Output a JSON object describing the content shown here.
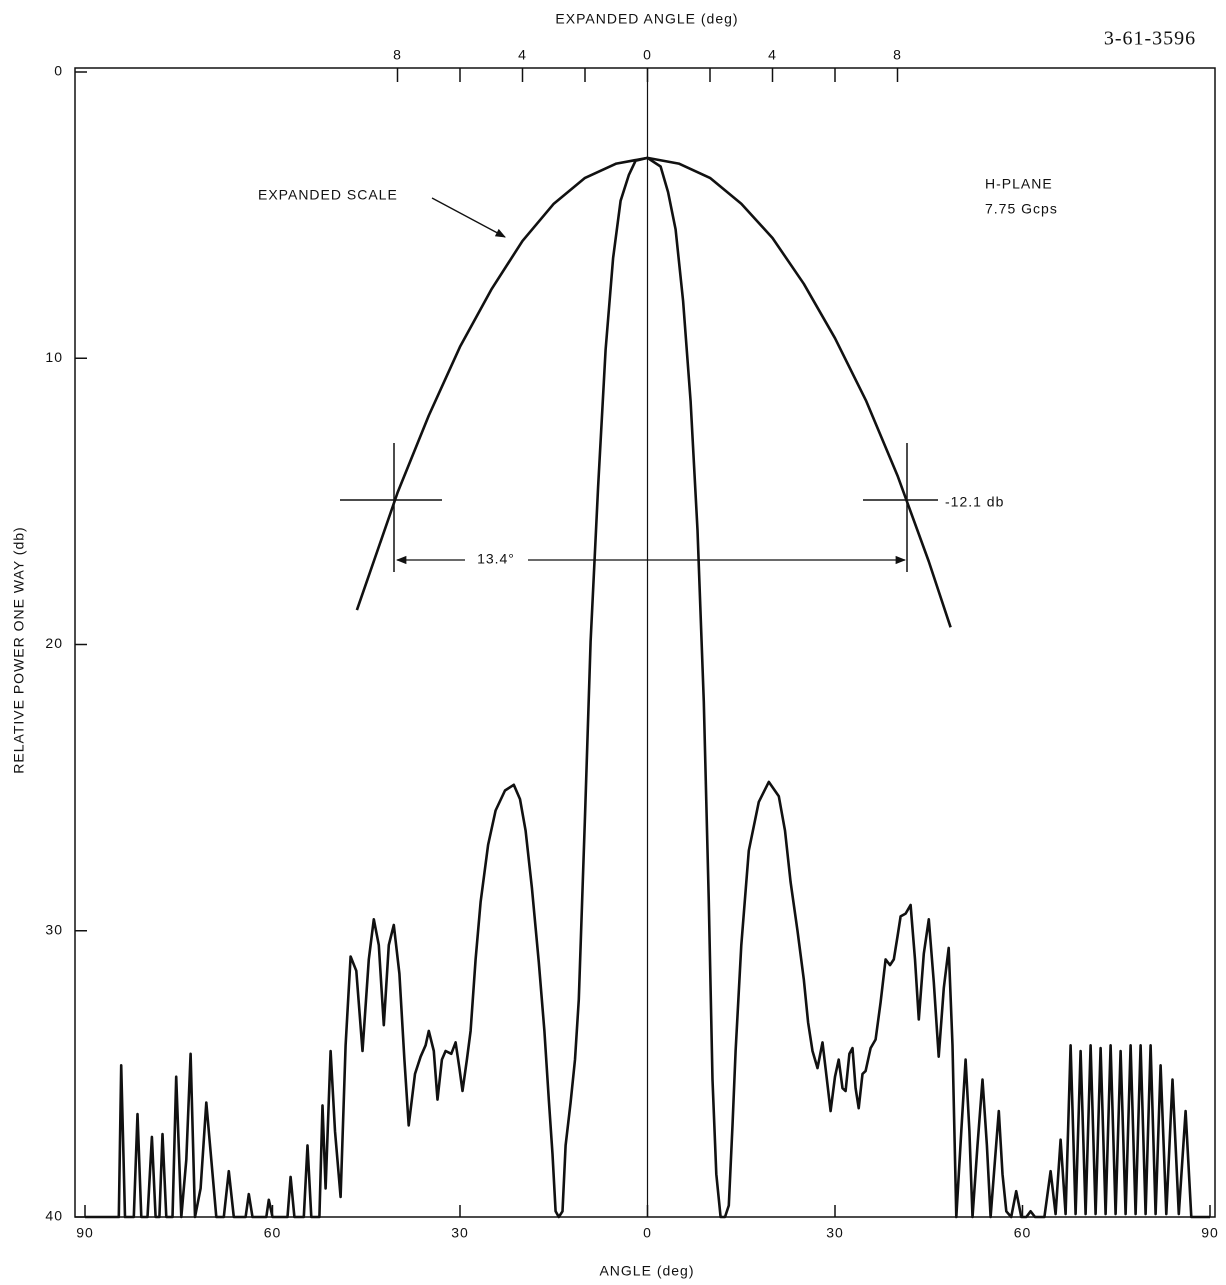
{
  "chart_data": {
    "type": "line",
    "figure_id": "3-61-3596",
    "xlabel": "ANGLE (deg)",
    "x2label": "EXPANDED ANGLE (deg)",
    "ylabel": "RELATIVE POWER ONE WAY (db)",
    "xlim": [
      -90,
      90
    ],
    "xticks": [
      {
        "value": -90,
        "label": "90"
      },
      {
        "value": -60,
        "label": "60"
      },
      {
        "value": -30,
        "label": "30"
      },
      0,
      30,
      60,
      90
    ],
    "x2lim": [
      -18,
      18
    ],
    "x2ticks": [
      {
        "value": -8,
        "label": "8"
      },
      {
        "value": -4,
        "label": "4"
      },
      0,
      4,
      8
    ],
    "x2minor_ticks": [
      -6,
      -2,
      2,
      6
    ],
    "ylim": [
      40,
      0
    ],
    "yticks": [
      0,
      10,
      20,
      30,
      40
    ],
    "series": [
      {
        "color": "#111111",
        "x": [
          -90,
          -84.6,
          -84.2,
          -83.6,
          -82.2,
          -81.6,
          -81,
          -80,
          -79.3,
          -78.7,
          -78.1,
          -77.6,
          -77,
          -76,
          -75.4,
          -74.6,
          -73.8,
          -73.1,
          -72.4,
          -71.5,
          -70.6,
          -69.8,
          -69,
          -67.8,
          -67,
          -66.2,
          -64.3,
          -63.8,
          -63.2,
          -61,
          -60.6,
          -60,
          -57.6,
          -57.1,
          -56.5,
          -55,
          -54.4,
          -53.8,
          -52.5,
          -52,
          -51.5,
          -50.7,
          -50,
          -49.1,
          -48.3,
          -47.5,
          -46.6,
          -45.6,
          -44.6,
          -43.8,
          -43,
          -42.2,
          -41.4,
          -40.6,
          -39.7,
          -38.9,
          -38.2,
          -37.2,
          -36.3,
          -35.5,
          -35,
          -34.2,
          -33.6,
          -32.9,
          -32.3,
          -31.4,
          -30.7,
          -30.1,
          -29.6,
          -28.9,
          -28.3,
          -27.5,
          -26.7,
          -25.5,
          -24.3,
          -22.8,
          -21.4,
          -20.4,
          -19.5,
          -18.5,
          -17.4,
          -16.5,
          -15.8,
          -15.2,
          -14.7,
          -14.2,
          -13.6,
          -13.1,
          -12.3,
          -11.6,
          -11,
          -10,
          -9.1,
          -7.9,
          -6.7,
          -5.5,
          -4.3,
          -3,
          -1.9,
          0,
          2.1,
          3.3,
          4.5,
          5.7,
          6.9,
          8,
          9,
          9.8,
          10.4,
          11,
          11.7,
          12.4,
          13,
          13.6,
          14.1,
          15,
          16.2,
          17.8,
          19.4,
          21,
          22,
          22.9,
          24,
          25,
          25.7,
          26.4,
          27.2,
          28,
          28.7,
          29.3,
          30,
          30.6,
          31.2,
          31.7,
          32.3,
          32.8,
          33.3,
          33.8,
          34.4,
          34.9,
          35.7,
          36.5,
          37.3,
          38.1,
          38.8,
          39.4,
          40,
          40.5,
          41.3,
          42.1,
          42.8,
          43.4,
          44.2,
          45,
          45.8,
          46.6,
          47.4,
          48.2,
          48.8,
          49.4,
          50.2,
          50.9,
          51.5,
          52,
          52.8,
          53.6,
          54.3,
          54.9,
          55.6,
          56.2,
          56.8,
          57.4,
          58.2,
          59,
          59.8,
          60.6,
          61.3,
          62,
          63.5,
          64.5,
          65.3,
          66.1,
          66.9,
          67.7,
          68.5,
          69.3,
          70.1,
          70.9,
          71.7,
          72.5,
          73.3,
          74.1,
          74.9,
          75.7,
          76.5,
          77.3,
          78.1,
          78.9,
          79.7,
          80.5,
          81.3,
          82.1,
          83,
          84,
          85,
          86.1,
          87,
          90
        ],
        "values": [
          40,
          40,
          34.7,
          40,
          40,
          36.4,
          40,
          40,
          37.2,
          40,
          40,
          37.1,
          40,
          40,
          35.1,
          40,
          38,
          34.3,
          40,
          39,
          36,
          38,
          40,
          40,
          38.4,
          40,
          40,
          39.2,
          40,
          40,
          39.4,
          40,
          40,
          38.6,
          40,
          40,
          37.5,
          40,
          40,
          36.1,
          39,
          34.2,
          37,
          39.3,
          34,
          30.9,
          31.4,
          34.2,
          31,
          29.6,
          30.5,
          33.3,
          30.5,
          29.8,
          31.5,
          34.5,
          36.8,
          35,
          34.4,
          34,
          33.5,
          34.2,
          35.9,
          34.5,
          34.2,
          34.3,
          33.9,
          34.8,
          35.6,
          34.5,
          33.5,
          31,
          29,
          27,
          25.8,
          25.1,
          24.9,
          25.4,
          26.5,
          28.5,
          31.1,
          33.5,
          35.9,
          37.8,
          39.8,
          40,
          39.8,
          37.5,
          36,
          34.5,
          32.4,
          26,
          19.9,
          14.5,
          9.7,
          6.5,
          4.5,
          3.6,
          3.1,
          3.0,
          3.3,
          4.2,
          5.5,
          8,
          11.5,
          16,
          22,
          29,
          35.2,
          38.5,
          40,
          40,
          39.6,
          36.8,
          34.2,
          30.5,
          27.2,
          25.5,
          24.8,
          25.3,
          26.5,
          28.3,
          30,
          31.7,
          33.2,
          34.2,
          34.8,
          33.9,
          35.2,
          36.3,
          35.1,
          34.5,
          35.5,
          35.6,
          34.3,
          34.1,
          35.5,
          36.2,
          35,
          34.9,
          34.1,
          33.8,
          32.5,
          31,
          31.2,
          31,
          30.2,
          29.5,
          29.4,
          29.1,
          31,
          33.1,
          30.8,
          29.6,
          31.8,
          34.4,
          32,
          30.6,
          34,
          40,
          37,
          34.5,
          37,
          40,
          37.5,
          35.2,
          37.5,
          40,
          38,
          36.3,
          38.5,
          39.8,
          40,
          39.1,
          40,
          40,
          39.8,
          40,
          40,
          38.4,
          39.9,
          37.3,
          39.9,
          34,
          39.9,
          34.2,
          39.9,
          34,
          39.9,
          34.1,
          39.9,
          34,
          39.9,
          34.2,
          39.9,
          34,
          39.9,
          34,
          39.9,
          34,
          39.9,
          34.7,
          39.9,
          35.2,
          39.9,
          36.3,
          40,
          40
        ]
      },
      {
        "color": "#111111",
        "axis": "x2",
        "x": [
          -9.3,
          -8,
          -7,
          -6,
          -5,
          -4,
          -3,
          -2,
          -1,
          0,
          1,
          2,
          3,
          4,
          5,
          6,
          7,
          8,
          9,
          9.7
        ],
        "values": [
          18.8,
          14.7,
          12,
          9.6,
          7.6,
          5.9,
          4.6,
          3.7,
          3.2,
          3.0,
          3.2,
          3.7,
          4.6,
          5.8,
          7.4,
          9.3,
          11.5,
          14.1,
          17.1,
          19.4
        ]
      }
    ],
    "annotations": [
      "EXPANDED SCALE",
      "H-PLANE",
      "7.75 Gcps",
      "-12.1 db",
      "13.4°"
    ]
  }
}
